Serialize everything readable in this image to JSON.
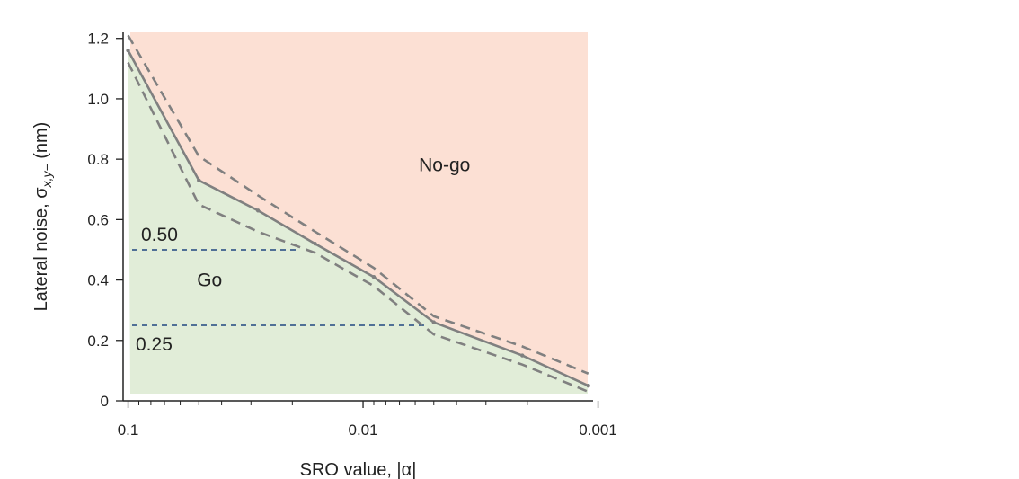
{
  "chart_data": {
    "type": "area",
    "xlabel": "SRO value, |α|",
    "ylabel": "Lateral noise, σ",
    "ylabel_subscript": "x,y−",
    "ylabel_unit": " (nm)",
    "x_scale": "log",
    "x_reversed": true,
    "xlim": [
      0.105,
      0.00105
    ],
    "ylim": [
      0,
      1.22
    ],
    "x_ticks": [
      {
        "value": 0.1,
        "label": "0.1"
      },
      {
        "value": 0.01,
        "label": "0.01"
      },
      {
        "value": 0.001,
        "label": "0.001"
      }
    ],
    "y_ticks": [
      {
        "value": 0,
        "label": "0"
      },
      {
        "value": 0.2,
        "label": "0.2"
      },
      {
        "value": 0.4,
        "label": "0.4"
      },
      {
        "value": 0.6,
        "label": "0.6"
      },
      {
        "value": 0.8,
        "label": "0.8"
      },
      {
        "value": 1.0,
        "label": "1.0"
      },
      {
        "value": 1.2,
        "label": "1.2"
      }
    ],
    "boundary": {
      "x": [
        0.1,
        0.05,
        0.028,
        0.016,
        0.009,
        0.005,
        0.0021,
        0.0011
      ],
      "y": [
        1.16,
        0.73,
        0.63,
        0.52,
        0.41,
        0.26,
        0.15,
        0.05
      ]
    },
    "upper_bound": {
      "x": [
        0.1,
        0.05,
        0.028,
        0.016,
        0.009,
        0.005,
        0.0021,
        0.0011
      ],
      "y": [
        1.21,
        0.81,
        0.68,
        0.56,
        0.44,
        0.28,
        0.18,
        0.09
      ]
    },
    "lower_bound": {
      "x": [
        0.1,
        0.05,
        0.028,
        0.016,
        0.009,
        0.005,
        0.0021,
        0.0011
      ],
      "y": [
        1.12,
        0.65,
        0.56,
        0.49,
        0.38,
        0.22,
        0.12,
        0.03
      ]
    },
    "thresholds": [
      {
        "value": 0.5,
        "label": "0.50",
        "x_end": 0.019
      },
      {
        "value": 0.25,
        "label": "0.25",
        "x_end": 0.0055
      }
    ],
    "regions": [
      {
        "label": "Go",
        "color": "#e1edd8",
        "label_x": 0.045,
        "label_y": 0.38
      },
      {
        "label": "No-go",
        "color": "#fce0d4",
        "label_x": 0.0045,
        "label_y": 0.76
      }
    ],
    "colors": {
      "boundary": "#808080",
      "bounds_dashed": "#808080",
      "threshold": "#3b5e8c",
      "axis": "#222222"
    }
  }
}
